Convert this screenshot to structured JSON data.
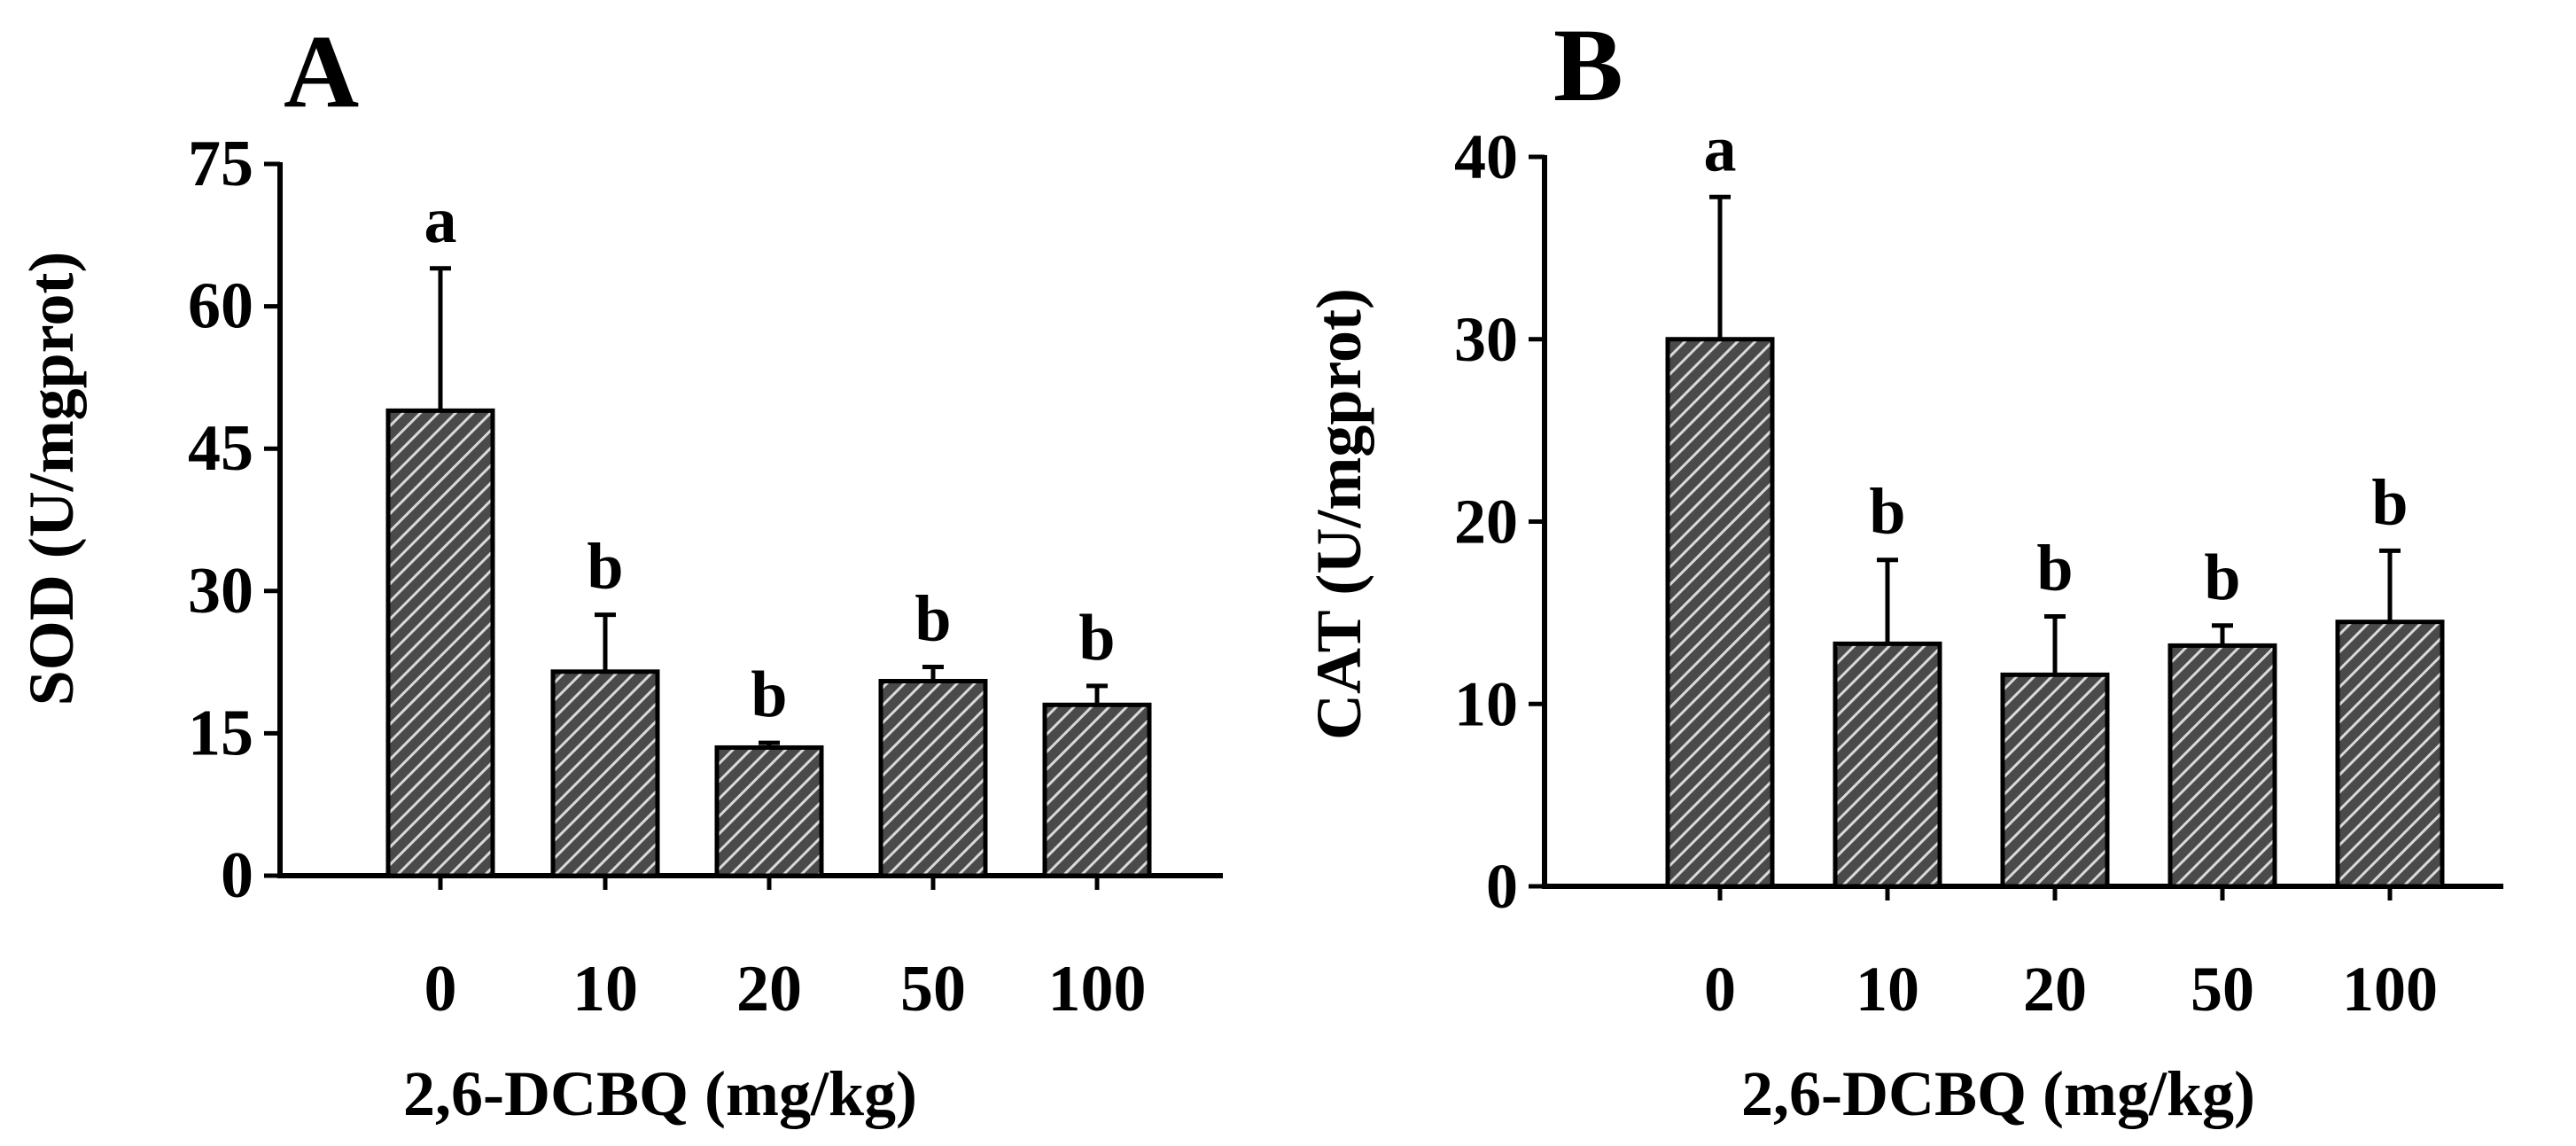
{
  "colors": {
    "bar_fill": "#4a4a4a",
    "hatch": "#d9d9d9",
    "axis": "#000000",
    "background": "#ffffff"
  },
  "chart_data": [
    {
      "panel_label": "A",
      "type": "bar",
      "categories": [
        "0",
        "10",
        "20",
        "50",
        "100"
      ],
      "values": [
        49,
        21.5,
        13.5,
        20.5,
        18
      ],
      "errors": [
        15,
        6,
        0.5,
        1.5,
        2
      ],
      "significance": [
        "a",
        "b",
        "b",
        "b",
        "b"
      ],
      "ylim": [
        0,
        75
      ],
      "yticks": [
        "0",
        "15",
        "30",
        "45",
        "60",
        "75"
      ],
      "ytick_values": [
        0,
        15,
        30,
        45,
        60,
        75
      ],
      "ylabel": "SOD (U/mgprot)",
      "xlabel": "2,6-DCBQ (mg/kg)"
    },
    {
      "panel_label": "B",
      "type": "bar",
      "categories": [
        "0",
        "10",
        "20",
        "50",
        "100"
      ],
      "values": [
        30,
        13.3,
        11.6,
        13.2,
        14.5
      ],
      "errors": [
        7.8,
        4.6,
        3.2,
        1.1,
        3.9
      ],
      "significance": [
        "a",
        "b",
        "b",
        "b",
        "b"
      ],
      "ylim": [
        0,
        40
      ],
      "yticks": [
        "0",
        "10",
        "20",
        "30",
        "40"
      ],
      "ytick_values": [
        0,
        10,
        20,
        30,
        40
      ],
      "ylabel": "CAT (U/mgprot)",
      "xlabel": "2,6-DCBQ (mg/kg)"
    }
  ]
}
